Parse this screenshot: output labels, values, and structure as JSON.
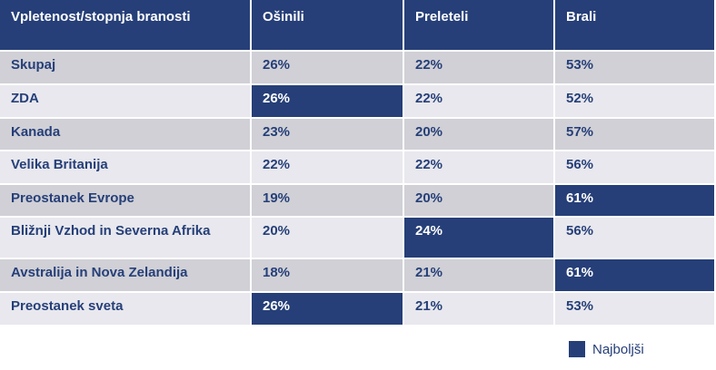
{
  "table": {
    "headers": [
      "Vpletenost/stopnja branosti",
      "Ošinili",
      "Preleteli",
      "Brali"
    ],
    "rows": [
      {
        "label": "Skupaj",
        "values": [
          "26%",
          "22%",
          "53%"
        ],
        "best": []
      },
      {
        "label": "ZDA",
        "values": [
          "26%",
          "22%",
          "52%"
        ],
        "best": [
          0
        ]
      },
      {
        "label": "Kanada",
        "values": [
          "23%",
          "20%",
          "57%"
        ],
        "best": []
      },
      {
        "label": "Velika Britanija",
        "values": [
          "22%",
          "22%",
          "56%"
        ],
        "best": []
      },
      {
        "label": "Preostanek Evrope",
        "values": [
          "19%",
          "20%",
          "61%"
        ],
        "best": [
          2
        ]
      },
      {
        "label": "Bližnji Vzhod in Severna Afrika",
        "values": [
          "20%",
          "24%",
          "56%"
        ],
        "best": [
          1
        ]
      },
      {
        "label": "Avstralija in Nova Zelandija",
        "values": [
          "18%",
          "21%",
          "61%"
        ],
        "best": [
          2
        ]
      },
      {
        "label": "Preostanek sveta",
        "values": [
          "26%",
          "21%",
          "53%"
        ],
        "best": [
          0
        ]
      }
    ],
    "row_heights": [
      37,
      37,
      36,
      37,
      36,
      46,
      37,
      37
    ],
    "colors": {
      "highlight": "#263f78",
      "row_odd": "#d0d0d6",
      "row_even": "#e8e8ee",
      "text": "#263f78"
    }
  },
  "legend": {
    "label": "Najboljši",
    "color": "#263f78"
  }
}
